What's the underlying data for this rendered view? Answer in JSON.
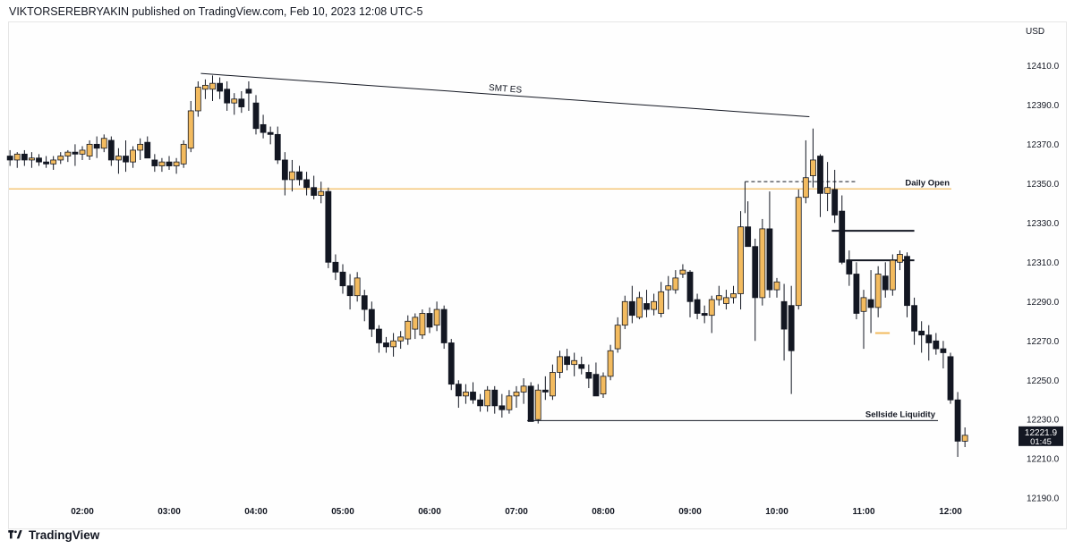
{
  "header": {
    "published_text": "VIKTORSEREBRYAKIN published on TradingView.com, Feb 10, 2023 12:08 UTC-5"
  },
  "footer": {
    "brand": "TradingView",
    "logo_icon": "tradingview-logo-icon"
  },
  "chart_data": {
    "type": "candlestick",
    "currency_label": "USD",
    "y_ticks": [
      "12410.0",
      "12390.0",
      "12370.0",
      "12350.0",
      "12330.0",
      "12310.0",
      "12290.0",
      "12270.0",
      "12250.0",
      "12230.0",
      "12210.0",
      "12190.0"
    ],
    "x_ticks": [
      "02:00",
      "03:00",
      "04:00",
      "05:00",
      "06:00",
      "07:00",
      "08:00",
      "09:00",
      "10:00",
      "11:00",
      "12:00"
    ],
    "ylim": [
      12186,
      12432
    ],
    "price_label": {
      "price": "12221.9",
      "countdown": "01:45"
    },
    "colors": {
      "bull": "#f3bb5f",
      "bear": "#131722",
      "daily_open": "#f3bb5f",
      "line": "#131722"
    },
    "levels": [
      {
        "label": "Daily Open",
        "price": 12347.3
      },
      {
        "label": "Sellside Liquidity",
        "price": 12229.5
      }
    ],
    "annotations": [
      {
        "label": "SMT ES",
        "from": [
          "03:25",
          12406
        ],
        "to": [
          "10:20",
          12384
        ]
      }
    ],
    "marker_lines": [
      {
        "from": [
          "09:38",
          12351
        ],
        "to": [
          "10:55",
          12351
        ],
        "style": "dashed"
      },
      {
        "from": [
          "10:38",
          12326
        ],
        "to": [
          "11:35",
          12326
        ],
        "style": "solid"
      },
      {
        "from": [
          "10:48",
          12311
        ],
        "to": [
          "11:35",
          12311
        ],
        "style": "solid"
      },
      {
        "from": [
          "11:08",
          12274
        ],
        "to": [
          "11:18",
          12274
        ],
        "style": "orange"
      },
      {
        "from": [
          "09:38",
          12351
        ],
        "to": [
          "09:38",
          12335
        ],
        "style": "vertical"
      }
    ],
    "candles": [
      {
        "t": "01:10",
        "o": 12364,
        "h": 12367,
        "l": 12359,
        "c": 12362
      },
      {
        "t": "01:15",
        "o": 12362,
        "h": 12366,
        "l": 12358,
        "c": 12365
      },
      {
        "t": "01:20",
        "o": 12365,
        "h": 12367,
        "l": 12359,
        "c": 12362
      },
      {
        "t": "01:25",
        "o": 12362,
        "h": 12366,
        "l": 12358,
        "c": 12363
      },
      {
        "t": "01:30",
        "o": 12363,
        "h": 12365,
        "l": 12359,
        "c": 12361
      },
      {
        "t": "01:35",
        "o": 12361,
        "h": 12364,
        "l": 12358,
        "c": 12360
      },
      {
        "t": "01:40",
        "o": 12360,
        "h": 12364,
        "l": 12357,
        "c": 12362
      },
      {
        "t": "01:45",
        "o": 12362,
        "h": 12366,
        "l": 12360,
        "c": 12364
      },
      {
        "t": "01:50",
        "o": 12364,
        "h": 12367,
        "l": 12361,
        "c": 12366
      },
      {
        "t": "01:55",
        "o": 12366,
        "h": 12370,
        "l": 12359,
        "c": 12365
      },
      {
        "t": "02:00",
        "o": 12365,
        "h": 12369,
        "l": 12362,
        "c": 12367
      },
      {
        "t": "02:05",
        "o": 12364,
        "h": 12372,
        "l": 12362,
        "c": 12370
      },
      {
        "t": "02:10",
        "o": 12370,
        "h": 12374,
        "l": 12363,
        "c": 12368
      },
      {
        "t": "02:15",
        "o": 12368,
        "h": 12375,
        "l": 12366,
        "c": 12373
      },
      {
        "t": "02:20",
        "o": 12372,
        "h": 12374,
        "l": 12359,
        "c": 12362
      },
      {
        "t": "02:25",
        "o": 12362,
        "h": 12368,
        "l": 12355,
        "c": 12364
      },
      {
        "t": "02:30",
        "o": 12364,
        "h": 12372,
        "l": 12356,
        "c": 12361
      },
      {
        "t": "02:35",
        "o": 12361,
        "h": 12369,
        "l": 12358,
        "c": 12367
      },
      {
        "t": "02:40",
        "o": 12367,
        "h": 12373,
        "l": 12362,
        "c": 12370
      },
      {
        "t": "02:45",
        "o": 12371,
        "h": 12374,
        "l": 12363,
        "c": 12363
      },
      {
        "t": "02:50",
        "o": 12362,
        "h": 12365,
        "l": 12356,
        "c": 12359
      },
      {
        "t": "02:55",
        "o": 12359,
        "h": 12363,
        "l": 12356,
        "c": 12361
      },
      {
        "t": "03:00",
        "o": 12361,
        "h": 12364,
        "l": 12357,
        "c": 12359
      },
      {
        "t": "03:05",
        "o": 12359,
        "h": 12363,
        "l": 12355,
        "c": 12361
      },
      {
        "t": "03:10",
        "o": 12360,
        "h": 12372,
        "l": 12358,
        "c": 12370
      },
      {
        "t": "03:15",
        "o": 12368,
        "h": 12392,
        "l": 12366,
        "c": 12387
      },
      {
        "t": "03:20",
        "o": 12387,
        "h": 12402,
        "l": 12384,
        "c": 12399
      },
      {
        "t": "03:25",
        "o": 12398,
        "h": 12403,
        "l": 12393,
        "c": 12400
      },
      {
        "t": "03:30",
        "o": 12398,
        "h": 12405,
        "l": 12392,
        "c": 12401
      },
      {
        "t": "03:35",
        "o": 12401,
        "h": 12404,
        "l": 12393,
        "c": 12397
      },
      {
        "t": "03:40",
        "o": 12398,
        "h": 12402,
        "l": 12387,
        "c": 12391
      },
      {
        "t": "03:45",
        "o": 12391,
        "h": 12396,
        "l": 12385,
        "c": 12393
      },
      {
        "t": "03:50",
        "o": 12393,
        "h": 12397,
        "l": 12386,
        "c": 12389
      },
      {
        "t": "03:55",
        "o": 12398,
        "h": 12402,
        "l": 12387,
        "c": 12396
      },
      {
        "t": "04:00",
        "o": 12391,
        "h": 12395,
        "l": 12375,
        "c": 12378
      },
      {
        "t": "04:05",
        "o": 12380,
        "h": 12385,
        "l": 12373,
        "c": 12376
      },
      {
        "t": "04:10",
        "o": 12376,
        "h": 12379,
        "l": 12370,
        "c": 12375
      },
      {
        "t": "04:15",
        "o": 12375,
        "h": 12379,
        "l": 12360,
        "c": 12362
      },
      {
        "t": "04:20",
        "o": 12362,
        "h": 12366,
        "l": 12344,
        "c": 12352
      },
      {
        "t": "04:25",
        "o": 12352,
        "h": 12362,
        "l": 12346,
        "c": 12356
      },
      {
        "t": "04:30",
        "o": 12356,
        "h": 12359,
        "l": 12349,
        "c": 12352
      },
      {
        "t": "04:35",
        "o": 12352,
        "h": 12356,
        "l": 12344,
        "c": 12348
      },
      {
        "t": "04:40",
        "o": 12348,
        "h": 12354,
        "l": 12342,
        "c": 12344
      },
      {
        "t": "04:45",
        "o": 12344,
        "h": 12351,
        "l": 12340,
        "c": 12346
      },
      {
        "t": "04:50",
        "o": 12346,
        "h": 12348,
        "l": 12307,
        "c": 12310
      },
      {
        "t": "04:55",
        "o": 12310,
        "h": 12314,
        "l": 12301,
        "c": 12305
      },
      {
        "t": "05:00",
        "o": 12305,
        "h": 12309,
        "l": 12294,
        "c": 12298
      },
      {
        "t": "05:05",
        "o": 12298,
        "h": 12304,
        "l": 12286,
        "c": 12293
      },
      {
        "t": "05:10",
        "o": 12293,
        "h": 12305,
        "l": 12290,
        "c": 12302
      },
      {
        "t": "05:15",
        "o": 12293,
        "h": 12296,
        "l": 12280,
        "c": 12286
      },
      {
        "t": "05:20",
        "o": 12286,
        "h": 12290,
        "l": 12272,
        "c": 12276
      },
      {
        "t": "05:25",
        "o": 12276,
        "h": 12278,
        "l": 12264,
        "c": 12269
      },
      {
        "t": "05:30",
        "o": 12269,
        "h": 12272,
        "l": 12264,
        "c": 12267
      },
      {
        "t": "05:35",
        "o": 12267,
        "h": 12274,
        "l": 12262,
        "c": 12270
      },
      {
        "t": "05:40",
        "o": 12270,
        "h": 12275,
        "l": 12266,
        "c": 12272
      },
      {
        "t": "05:45",
        "o": 12271,
        "h": 12283,
        "l": 12268,
        "c": 12280
      },
      {
        "t": "05:50",
        "o": 12276,
        "h": 12284,
        "l": 12271,
        "c": 12282
      },
      {
        "t": "05:55",
        "o": 12273,
        "h": 12286,
        "l": 12271,
        "c": 12284
      },
      {
        "t": "06:00",
        "o": 12284,
        "h": 12287,
        "l": 12274,
        "c": 12277
      },
      {
        "t": "06:05",
        "o": 12278,
        "h": 12290,
        "l": 12275,
        "c": 12286
      },
      {
        "t": "06:10",
        "o": 12286,
        "h": 12288,
        "l": 12266,
        "c": 12269
      },
      {
        "t": "06:15",
        "o": 12269,
        "h": 12271,
        "l": 12245,
        "c": 12248
      },
      {
        "t": "06:20",
        "o": 12248,
        "h": 12250,
        "l": 12236,
        "c": 12242
      },
      {
        "t": "06:25",
        "o": 12242,
        "h": 12248,
        "l": 12238,
        "c": 12244
      },
      {
        "t": "06:30",
        "o": 12244,
        "h": 12249,
        "l": 12238,
        "c": 12240
      },
      {
        "t": "06:35",
        "o": 12240,
        "h": 12243,
        "l": 12234,
        "c": 12237
      },
      {
        "t": "06:40",
        "o": 12237,
        "h": 12247,
        "l": 12234,
        "c": 12245
      },
      {
        "t": "06:45",
        "o": 12245,
        "h": 12247,
        "l": 12233,
        "c": 12237
      },
      {
        "t": "06:50",
        "o": 12237,
        "h": 12243,
        "l": 12231,
        "c": 12235
      },
      {
        "t": "06:55",
        "o": 12235,
        "h": 12245,
        "l": 12233,
        "c": 12242
      },
      {
        "t": "07:00",
        "o": 12242,
        "h": 12247,
        "l": 12236,
        "c": 12244
      },
      {
        "t": "07:05",
        "o": 12244,
        "h": 12251,
        "l": 12238,
        "c": 12247
      },
      {
        "t": "07:10",
        "o": 12247,
        "h": 12249,
        "l": 12229,
        "c": 12229
      },
      {
        "t": "07:15",
        "o": 12230,
        "h": 12248,
        "l": 12228,
        "c": 12245
      },
      {
        "t": "07:20",
        "o": 12245,
        "h": 12252,
        "l": 12240,
        "c": 12244
      },
      {
        "t": "07:25",
        "o": 12242,
        "h": 12258,
        "l": 12240,
        "c": 12254
      },
      {
        "t": "07:30",
        "o": 12254,
        "h": 12265,
        "l": 12251,
        "c": 12262
      },
      {
        "t": "07:35",
        "o": 12262,
        "h": 12266,
        "l": 12255,
        "c": 12258
      },
      {
        "t": "07:40",
        "o": 12258,
        "h": 12264,
        "l": 12252,
        "c": 12260
      },
      {
        "t": "07:45",
        "o": 12258,
        "h": 12262,
        "l": 12253,
        "c": 12256
      },
      {
        "t": "07:50",
        "o": 12254,
        "h": 12258,
        "l": 12246,
        "c": 12251
      },
      {
        "t": "07:55",
        "o": 12253,
        "h": 12259,
        "l": 12243,
        "c": 12242
      },
      {
        "t": "08:00",
        "o": 12243,
        "h": 12254,
        "l": 12241,
        "c": 12252
      },
      {
        "t": "08:05",
        "o": 12252,
        "h": 12268,
        "l": 12250,
        "c": 12265
      },
      {
        "t": "08:10",
        "o": 12266,
        "h": 12282,
        "l": 12264,
        "c": 12278
      },
      {
        "t": "08:15",
        "o": 12278,
        "h": 12293,
        "l": 12276,
        "c": 12290
      },
      {
        "t": "08:20",
        "o": 12290,
        "h": 12298,
        "l": 12279,
        "c": 12283
      },
      {
        "t": "08:25",
        "o": 12282,
        "h": 12295,
        "l": 12281,
        "c": 12292
      },
      {
        "t": "08:30",
        "o": 12289,
        "h": 12296,
        "l": 12282,
        "c": 12286
      },
      {
        "t": "08:35",
        "o": 12286,
        "h": 12294,
        "l": 12283,
        "c": 12290
      },
      {
        "t": "08:40",
        "o": 12284,
        "h": 12300,
        "l": 12282,
        "c": 12295
      },
      {
        "t": "08:45",
        "o": 12296,
        "h": 12303,
        "l": 12286,
        "c": 12298
      },
      {
        "t": "08:50",
        "o": 12296,
        "h": 12306,
        "l": 12294,
        "c": 12302
      },
      {
        "t": "08:55",
        "o": 12304,
        "h": 12309,
        "l": 12302,
        "c": 12306
      },
      {
        "t": "09:00",
        "o": 12305,
        "h": 12306,
        "l": 12282,
        "c": 12290
      },
      {
        "t": "09:05",
        "o": 12291,
        "h": 12294,
        "l": 12281,
        "c": 12284
      },
      {
        "t": "09:10",
        "o": 12284,
        "h": 12288,
        "l": 12279,
        "c": 12283
      },
      {
        "t": "09:15",
        "o": 12283,
        "h": 12293,
        "l": 12274,
        "c": 12291
      },
      {
        "t": "09:20",
        "o": 12291,
        "h": 12298,
        "l": 12288,
        "c": 12293
      },
      {
        "t": "09:25",
        "o": 12289,
        "h": 12296,
        "l": 12286,
        "c": 12292
      },
      {
        "t": "09:30",
        "o": 12292,
        "h": 12298,
        "l": 12289,
        "c": 12294
      },
      {
        "t": "09:35",
        "o": 12294,
        "h": 12336,
        "l": 12286,
        "c": 12328
      },
      {
        "t": "09:40",
        "o": 12328,
        "h": 12341,
        "l": 12318,
        "c": 12318
      },
      {
        "t": "09:45",
        "o": 12318,
        "h": 12322,
        "l": 12270,
        "c": 12292
      },
      {
        "t": "09:50",
        "o": 12292,
        "h": 12332,
        "l": 12288,
        "c": 12327
      },
      {
        "t": "09:55",
        "o": 12327,
        "h": 12346,
        "l": 12292,
        "c": 12296
      },
      {
        "t": "10:00",
        "o": 12296,
        "h": 12302,
        "l": 12292,
        "c": 12300
      },
      {
        "t": "10:05",
        "o": 12290,
        "h": 12299,
        "l": 12260,
        "c": 12276
      },
      {
        "t": "10:10",
        "o": 12288,
        "h": 12298,
        "l": 12243,
        "c": 12265
      },
      {
        "t": "10:15",
        "o": 12288,
        "h": 12347,
        "l": 12286,
        "c": 12343
      },
      {
        "t": "10:20",
        "o": 12343,
        "h": 12372,
        "l": 12340,
        "c": 12353
      },
      {
        "t": "10:25",
        "o": 12354,
        "h": 12378,
        "l": 12348,
        "c": 12362
      },
      {
        "t": "10:30",
        "o": 12364,
        "h": 12365,
        "l": 12333,
        "c": 12345
      },
      {
        "t": "10:35",
        "o": 12345,
        "h": 12361,
        "l": 12336,
        "c": 12348
      },
      {
        "t": "10:40",
        "o": 12347,
        "h": 12357,
        "l": 12330,
        "c": 12334
      },
      {
        "t": "10:45",
        "o": 12336,
        "h": 12344,
        "l": 12309,
        "c": 12310
      },
      {
        "t": "10:50",
        "o": 12311,
        "h": 12316,
        "l": 12298,
        "c": 12304
      },
      {
        "t": "10:55",
        "o": 12304,
        "h": 12310,
        "l": 12281,
        "c": 12284
      },
      {
        "t": "11:00",
        "o": 12285,
        "h": 12296,
        "l": 12266,
        "c": 12292
      },
      {
        "t": "11:05",
        "o": 12291,
        "h": 12306,
        "l": 12274,
        "c": 12287
      },
      {
        "t": "11:10",
        "o": 12287,
        "h": 12308,
        "l": 12282,
        "c": 12304
      },
      {
        "t": "11:15",
        "o": 12303,
        "h": 12310,
        "l": 12292,
        "c": 12296
      },
      {
        "t": "11:20",
        "o": 12296,
        "h": 12314,
        "l": 12293,
        "c": 12311
      },
      {
        "t": "11:25",
        "o": 12310,
        "h": 12316,
        "l": 12306,
        "c": 12314
      },
      {
        "t": "11:30",
        "o": 12313,
        "h": 12315,
        "l": 12282,
        "c": 12288
      },
      {
        "t": "11:35",
        "o": 12288,
        "h": 12292,
        "l": 12268,
        "c": 12275
      },
      {
        "t": "11:40",
        "o": 12275,
        "h": 12280,
        "l": 12264,
        "c": 12273
      },
      {
        "t": "11:45",
        "o": 12273,
        "h": 12278,
        "l": 12260,
        "c": 12269
      },
      {
        "t": "11:50",
        "o": 12270,
        "h": 12274,
        "l": 12263,
        "c": 12266
      },
      {
        "t": "11:55",
        "o": 12266,
        "h": 12270,
        "l": 12256,
        "c": 12264
      },
      {
        "t": "12:00",
        "o": 12262,
        "h": 12264,
        "l": 12238,
        "c": 12240
      },
      {
        "t": "12:05",
        "o": 12240,
        "h": 12244,
        "l": 12211,
        "c": 12219
      },
      {
        "t": "12:10",
        "o": 12219,
        "h": 12226,
        "l": 12216,
        "c": 12222
      }
    ]
  }
}
